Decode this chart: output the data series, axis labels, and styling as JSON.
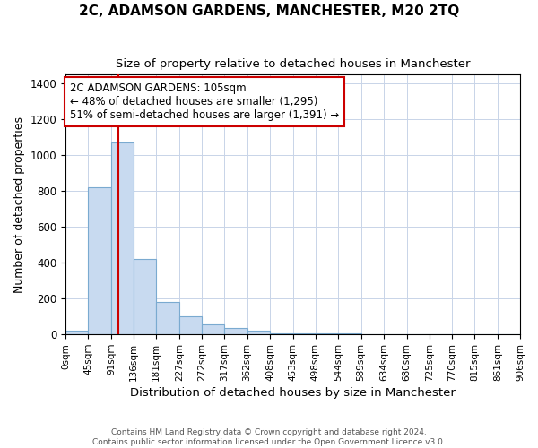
{
  "title": "2C, ADAMSON GARDENS, MANCHESTER, M20 2TQ",
  "subtitle": "Size of property relative to detached houses in Manchester",
  "xlabel": "Distribution of detached houses by size in Manchester",
  "ylabel": "Number of detached properties",
  "bar_color": "#c8daf0",
  "bar_edge_color": "#7aaad0",
  "grid_color": "#c8d4e8",
  "background_color": "#ffffff",
  "ax_background_color": "#ffffff",
  "bin_edges": [
    0,
    45,
    91,
    136,
    181,
    227,
    272,
    317,
    362,
    408,
    453,
    498,
    544,
    589,
    634,
    680,
    725,
    770,
    815,
    861,
    906
  ],
  "bar_heights": [
    22,
    820,
    1070,
    420,
    180,
    100,
    55,
    38,
    20,
    8,
    8,
    8,
    8,
    0,
    0,
    0,
    0,
    0,
    0,
    0
  ],
  "x_tick_labels": [
    "0sqm",
    "45sqm",
    "91sqm",
    "136sqm",
    "181sqm",
    "227sqm",
    "272sqm",
    "317sqm",
    "362sqm",
    "408sqm",
    "453sqm",
    "498sqm",
    "544sqm",
    "589sqm",
    "634sqm",
    "680sqm",
    "725sqm",
    "770sqm",
    "815sqm",
    "861sqm",
    "906sqm"
  ],
  "red_line_x": 105,
  "red_line_color": "#cc0000",
  "annotation_line1": "2C ADAMSON GARDENS: 105sqm",
  "annotation_line2": "← 48% of detached houses are smaller (1,295)",
  "annotation_line3": "51% of semi-detached houses are larger (1,391) →",
  "annotation_box_color": "#ffffff",
  "annotation_box_edge_color": "#cc0000",
  "footer_text": "Contains HM Land Registry data © Crown copyright and database right 2024.\nContains public sector information licensed under the Open Government Licence v3.0.",
  "ylim": [
    0,
    1450
  ],
  "xlim": [
    0,
    906
  ],
  "figsize": [
    6.0,
    5.0
  ],
  "dpi": 100
}
